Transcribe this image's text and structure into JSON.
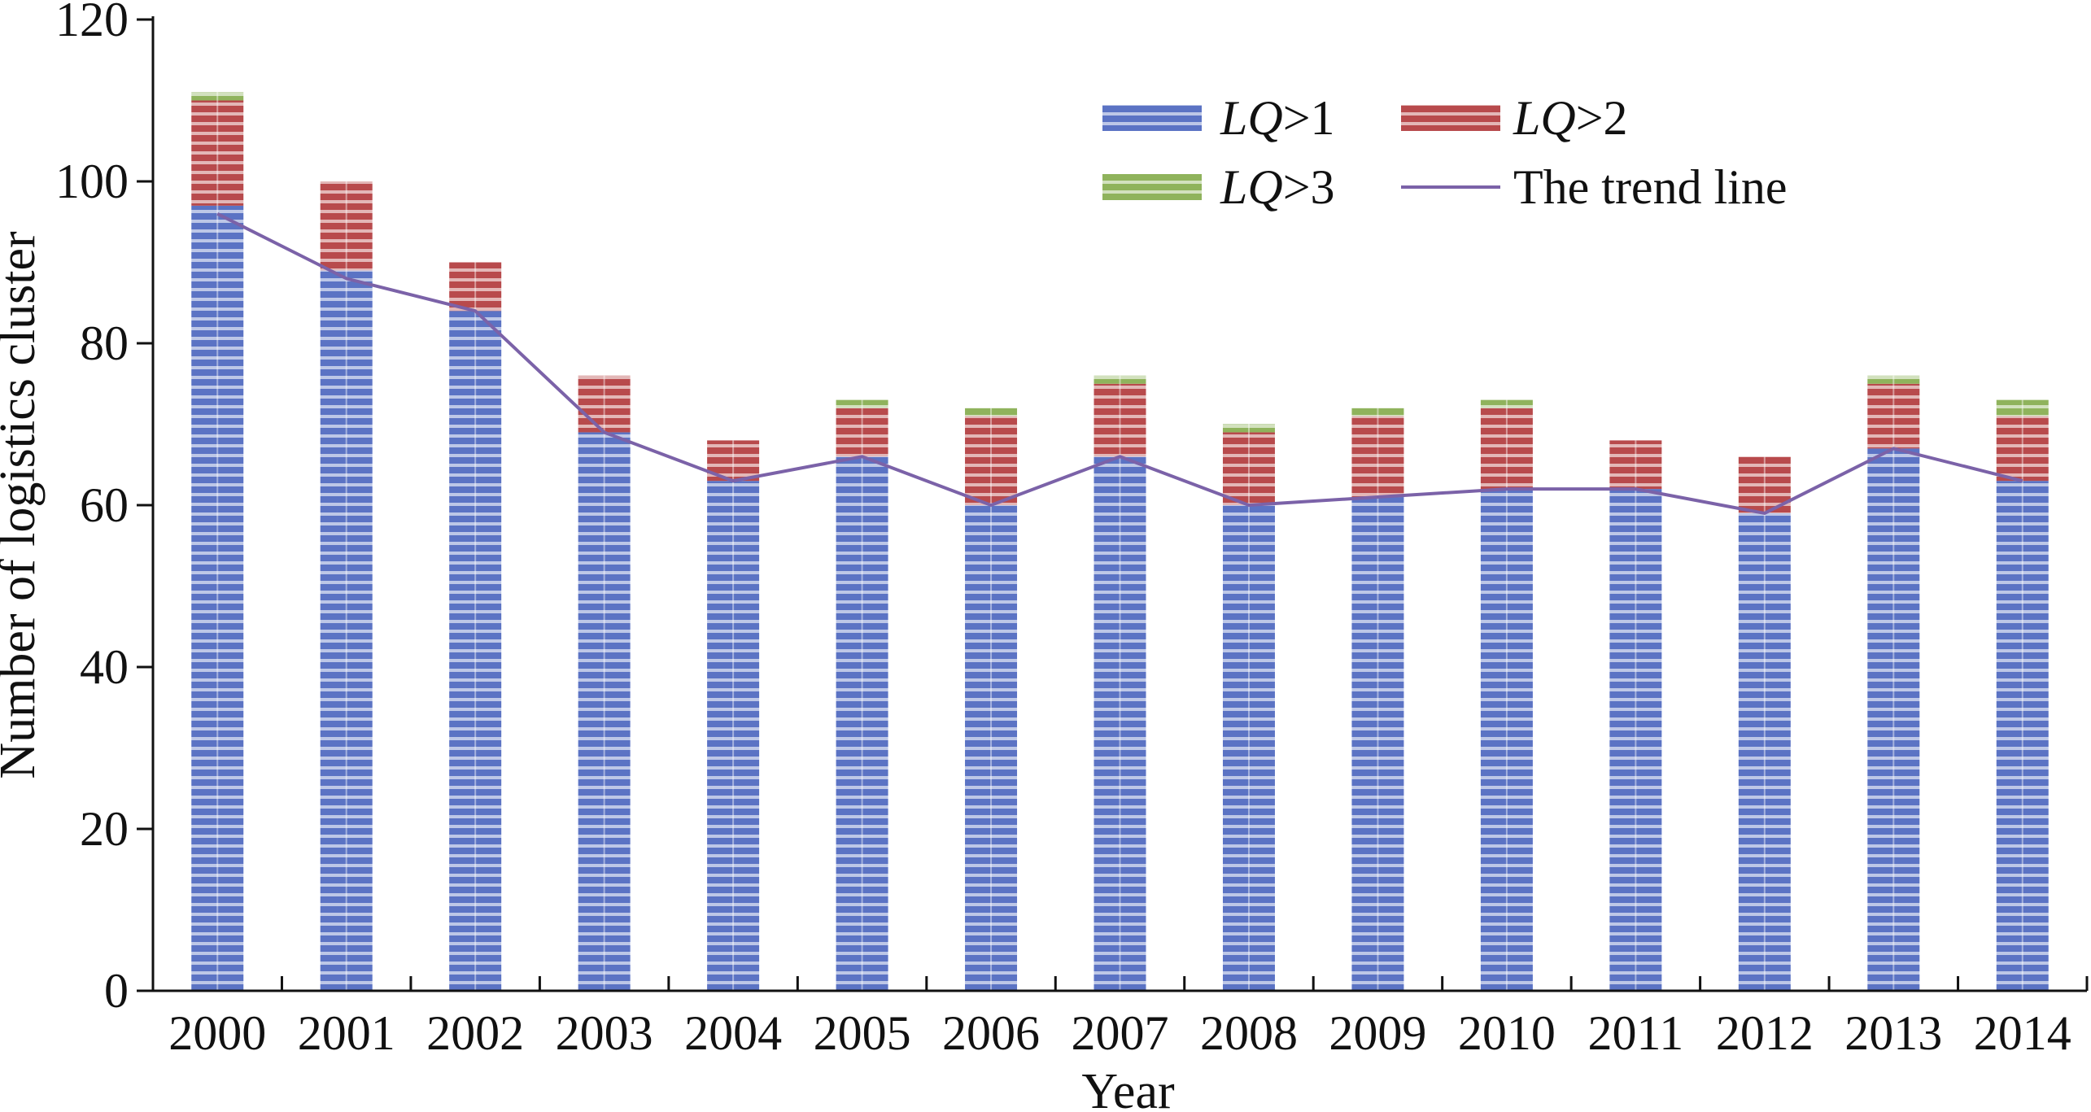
{
  "chart_data": {
    "type": "bar",
    "stacked": true,
    "xlabel": "Year",
    "ylabel": "Number of logistics cluster",
    "ylim": [
      0,
      120
    ],
    "yticks": [
      0,
      20,
      40,
      60,
      80,
      100,
      120
    ],
    "grid": false,
    "legend_position": "top-right",
    "categories": [
      "2000",
      "2001",
      "2002",
      "2003",
      "2004",
      "2005",
      "2006",
      "2007",
      "2008",
      "2009",
      "2010",
      "2011",
      "2012",
      "2013",
      "2014"
    ],
    "series": [
      {
        "name": "LQ>1",
        "name_italic": "LQ",
        "name_rest": ">1",
        "color": "#5b73c4",
        "values": [
          97,
          89,
          84,
          69,
          63,
          66,
          60,
          66,
          60,
          61,
          62,
          62,
          59,
          67,
          63
        ]
      },
      {
        "name": "LQ>2",
        "name_italic": "LQ",
        "name_rest": ">2",
        "color": "#b84a4c",
        "values": [
          13,
          11,
          6,
          7,
          5,
          6,
          11,
          9,
          9,
          10,
          10,
          6,
          7,
          8,
          8
        ]
      },
      {
        "name": "LQ>3",
        "name_italic": "LQ",
        "name_rest": ">3",
        "color": "#8fb35c",
        "values": [
          1,
          0,
          0,
          0,
          0,
          1,
          1,
          1,
          1,
          1,
          1,
          0,
          0,
          1,
          2
        ]
      }
    ],
    "trend_line": {
      "name": "The trend line",
      "color": "#7b62a8",
      "values": [
        96,
        88,
        84,
        69,
        63,
        66,
        60,
        66,
        60,
        61,
        62,
        62,
        59,
        67,
        63
      ]
    }
  }
}
